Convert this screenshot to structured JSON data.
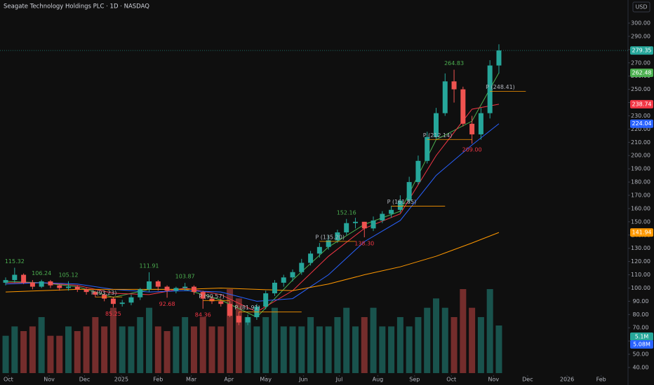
{
  "header": {
    "title": "Seagate Technology Holdings PLC · 1D · NASDAQ",
    "currency": "USD"
  },
  "chart_data": {
    "type": "candlestick",
    "open": [
      104,
      106,
      110,
      104,
      101,
      105,
      102,
      100,
      101,
      99,
      97,
      95,
      92,
      88,
      89,
      93,
      99,
      105,
      101,
      98,
      100,
      101,
      97,
      92,
      90,
      88,
      79,
      74,
      78,
      86,
      96,
      104,
      108,
      112,
      119,
      126,
      131,
      136,
      142,
      149,
      150,
      145,
      151,
      156,
      159,
      166,
      180,
      196,
      214,
      232,
      256,
      250,
      224,
      216,
      232,
      268
    ],
    "high": [
      108,
      115.32,
      111,
      106,
      106.24,
      106,
      103,
      105.12,
      102,
      100,
      98,
      96,
      93,
      91,
      95,
      100,
      111.91,
      106,
      102,
      101,
      103.87,
      102,
      98,
      94,
      92,
      90,
      82,
      80,
      88,
      98,
      106,
      110,
      114,
      122,
      128,
      134,
      140,
      144,
      152.16,
      153,
      150,
      154,
      158,
      162,
      170,
      184,
      200,
      218,
      236,
      262,
      264.83,
      252,
      230,
      236,
      272,
      284
    ],
    "low": [
      102,
      104,
      103,
      99,
      100,
      100,
      98,
      98,
      97,
      95,
      93,
      90,
      85.25,
      86,
      87,
      91,
      97,
      98,
      92.68,
      96,
      98,
      95,
      84.36,
      88,
      86,
      78,
      72,
      72,
      76,
      84,
      94,
      101,
      105,
      110,
      117,
      123,
      129,
      134,
      140,
      145,
      138.3,
      143,
      149,
      153,
      157,
      164,
      178,
      194,
      212,
      230,
      240,
      222,
      209,
      212,
      228,
      262
    ],
    "close": [
      106,
      110,
      104,
      101,
      105,
      102,
      100,
      101,
      99,
      97,
      95,
      92,
      88,
      89,
      93,
      99,
      105,
      101,
      98,
      100,
      101,
      97,
      92,
      90,
      88,
      79,
      74,
      78,
      86,
      96,
      104,
      108,
      112,
      119,
      126,
      131,
      136,
      142,
      149,
      150,
      145,
      151,
      156,
      159,
      166,
      180,
      196,
      214,
      232,
      256,
      250,
      224,
      216,
      232,
      268,
      279.35
    ],
    "close_label": "279.35",
    "up_color": "#26a69a",
    "down_color": "#ef5350",
    "volume": [
      4,
      5,
      4.5,
      5,
      6,
      4,
      4,
      5,
      4.5,
      5,
      6,
      5,
      7,
      5,
      5,
      6,
      7,
      5,
      4.5,
      5,
      6,
      5,
      6,
      5,
      5,
      9,
      8,
      6,
      5,
      6,
      7,
      5,
      5,
      5,
      6,
      5,
      5,
      6,
      7,
      5,
      6,
      7,
      5,
      5,
      6,
      5,
      6,
      7,
      8,
      7,
      6,
      9,
      7,
      6,
      9,
      5.1
    ],
    "volume_label": "5.1M",
    "volume_ma": {
      "value": 5.08,
      "label": "5.08M"
    },
    "moving_averages": [
      {
        "color": "#4caf50",
        "x": [
          0,
          4,
          8,
          12,
          16,
          20,
          24,
          28,
          32,
          36,
          40,
          44,
          48,
          52,
          55
        ],
        "values": [
          105,
          104,
          101,
          93,
          99,
          99,
          91,
          78,
          106,
          131,
          148,
          158,
          212,
          226,
          262.48
        ]
      },
      {
        "color": "#f23645",
        "x": [
          0,
          4,
          8,
          12,
          16,
          20,
          24,
          28,
          32,
          36,
          40,
          44,
          48,
          52,
          55
        ],
        "values": [
          104,
          104,
          102,
          96,
          95,
          100,
          95,
          82,
          98,
          124,
          145,
          156,
          200,
          235,
          238.74
        ]
      },
      {
        "color": "#2962ff",
        "x": [
          0,
          4,
          8,
          12,
          16,
          20,
          24,
          28,
          32,
          36,
          40,
          44,
          48,
          52,
          55
        ],
        "values": [
          103,
          104,
          103,
          99,
          97,
          98,
          97,
          90,
          92,
          110,
          135,
          151,
          185,
          208,
          224.04
        ]
      },
      {
        "color": "#ff9800",
        "x": [
          0,
          4,
          8,
          12,
          16,
          20,
          24,
          28,
          32,
          36,
          40,
          44,
          48,
          52,
          55
        ],
        "values": [
          97,
          98,
          99,
          99,
          99,
          99,
          100,
          99,
          98,
          103,
          110,
          116,
          124,
          134,
          141.94
        ]
      }
    ],
    "ma_labels": [
      "262.48",
      "238.74",
      "224.04",
      "141.94"
    ],
    "extremes": [
      {
        "x": 50,
        "value": 264.83,
        "label": "264.83",
        "color": "#4caf50",
        "pos": "above"
      },
      {
        "x": 52,
        "value": 209,
        "label": "209.00",
        "color": "#f23645",
        "pos": "below"
      },
      {
        "x": 38,
        "value": 152.16,
        "label": "152.16",
        "color": "#4caf50",
        "pos": "above"
      },
      {
        "x": 40,
        "value": 138.3,
        "label": "138.30",
        "color": "#f23645",
        "pos": "below"
      },
      {
        "x": 1,
        "value": 115.32,
        "label": "115.32",
        "color": "#4caf50",
        "pos": "above"
      },
      {
        "x": 4,
        "value": 106.24,
        "label": "106.24",
        "color": "#4caf50",
        "pos": "above"
      },
      {
        "x": 7,
        "value": 105.12,
        "label": "105.12",
        "color": "#4caf50",
        "pos": "above"
      },
      {
        "x": 16,
        "value": 111.91,
        "label": "111.91",
        "color": "#4caf50",
        "pos": "above"
      },
      {
        "x": 20,
        "value": 103.87,
        "label": "103.87",
        "color": "#4caf50",
        "pos": "above"
      },
      {
        "x": 12,
        "value": 85.25,
        "label": "85.25",
        "color": "#f23645",
        "pos": "below"
      },
      {
        "x": 18,
        "value": 92.68,
        "label": "92.68",
        "color": "#f23645",
        "pos": "below"
      },
      {
        "x": 22,
        "value": 84.36,
        "label": "84.36",
        "color": "#f23645",
        "pos": "below"
      }
    ],
    "pivots": [
      {
        "label": "P (248.41)",
        "value": 248.41,
        "x": 54,
        "end": 58
      },
      {
        "label": "P (212.14)",
        "value": 212.14,
        "x": 47,
        "end": 52
      },
      {
        "label": "P (161.85)",
        "value": 161.85,
        "x": 43,
        "end": 49
      },
      {
        "label": "P (135.20)",
        "value": 135.2,
        "x": 35,
        "end": 39
      },
      {
        "label": "P (81.91)",
        "value": 81.91,
        "x": 26,
        "end": 33
      },
      {
        "label": "P (93.23)",
        "value": 93.23,
        "x": 10,
        "end": 13
      },
      {
        "label": "P (90.57)",
        "value": 90.57,
        "x": 22,
        "end": 25
      }
    ],
    "ylim": [
      40,
      300
    ],
    "yticks": [
      {
        "value": 300,
        "label": "300.00"
      },
      {
        "value": 290,
        "label": "290.00"
      },
      {
        "value": 280,
        "label": "280.00"
      },
      {
        "value": 270,
        "label": "270.00"
      },
      {
        "value": 260,
        "label": "260.00"
      },
      {
        "value": 250,
        "label": "250.00"
      },
      {
        "value": 240,
        "label": "240.00"
      },
      {
        "value": 230,
        "label": "230.00"
      },
      {
        "value": 220,
        "label": "220.00"
      },
      {
        "value": 210,
        "label": "210.00"
      },
      {
        "value": 200,
        "label": "200.00"
      },
      {
        "value": 190,
        "label": "190.00"
      },
      {
        "value": 180,
        "label": "180.00"
      },
      {
        "value": 170,
        "label": "170.00"
      },
      {
        "value": 160,
        "label": "160.00"
      },
      {
        "value": 150,
        "label": "150.00"
      },
      {
        "value": 140,
        "label": "140.00"
      },
      {
        "value": 130,
        "label": "130.00"
      },
      {
        "value": 120,
        "label": "120.00"
      },
      {
        "value": 110,
        "label": "110.00"
      },
      {
        "value": 100,
        "label": "100.00"
      },
      {
        "value": 90,
        "label": "90.00"
      },
      {
        "value": 80,
        "label": "80.00"
      },
      {
        "value": 70,
        "label": "70.00"
      },
      {
        "value": 60,
        "label": "60.00"
      },
      {
        "value": 50,
        "label": "50.00"
      },
      {
        "value": 40,
        "label": "40.00"
      }
    ],
    "xlim": [
      -0.63,
      69.4
    ],
    "xticks": [
      {
        "value": 0.3,
        "label": "Oct"
      },
      {
        "value": 4.85,
        "label": "Nov"
      },
      {
        "value": 8.8,
        "label": "Dec"
      },
      {
        "value": 12.9,
        "label": "2025"
      },
      {
        "value": 17,
        "label": "Feb"
      },
      {
        "value": 20.7,
        "label": "Mar"
      },
      {
        "value": 24.9,
        "label": "Apr"
      },
      {
        "value": 29,
        "label": "May"
      },
      {
        "value": 33.2,
        "label": "Jun"
      },
      {
        "value": 37.2,
        "label": "Jul"
      },
      {
        "value": 41.5,
        "label": "Aug"
      },
      {
        "value": 45.6,
        "label": "Sep"
      },
      {
        "value": 49.7,
        "label": "Oct"
      },
      {
        "value": 54.4,
        "label": "Nov"
      },
      {
        "value": 58.2,
        "label": "Dec"
      },
      {
        "value": 62.6,
        "label": "2026"
      },
      {
        "value": 66.4,
        "label": "Feb"
      }
    ]
  }
}
